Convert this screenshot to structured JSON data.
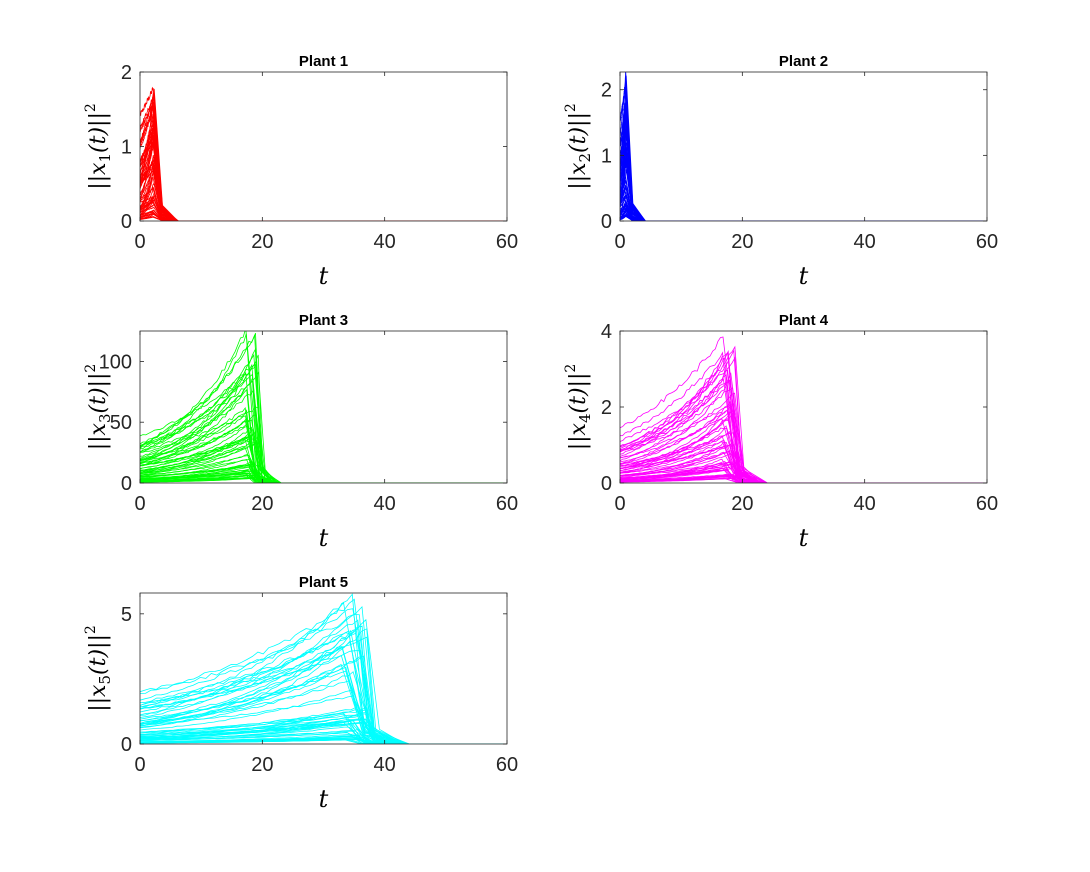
{
  "chart_data": [
    {
      "type": "line",
      "title": "Plant 1",
      "color": "#ff0000",
      "xlabel": "t",
      "ylabel": {
        "pre": "||",
        "var": "x",
        "sub": "1",
        "arg": "(t)",
        "post": "||",
        "sup": "2"
      },
      "xlim": [
        0,
        60
      ],
      "ylim": [
        0,
        2
      ],
      "xticks": [
        0,
        20,
        40,
        60
      ],
      "yticks": [
        0,
        1,
        2
      ],
      "peak_time": 2.3,
      "max_peak": 1.78,
      "decay_end": 6
    },
    {
      "type": "line",
      "title": "Plant 2",
      "color": "#0000ff",
      "xlabel": "t",
      "ylabel": {
        "pre": "||",
        "var": "x",
        "sub": "2",
        "arg": "(t)",
        "post": "||",
        "sup": "2"
      },
      "xlim": [
        0,
        60
      ],
      "ylim": [
        0,
        2.27
      ],
      "xticks": [
        0,
        20,
        40,
        60
      ],
      "yticks": [
        0,
        1,
        2
      ],
      "peak_time": 1.0,
      "max_peak": 2.27,
      "decay_end": 4
    },
    {
      "type": "line",
      "title": "Plant 3",
      "color": "#00ff00",
      "xlabel": "t",
      "ylabel": {
        "pre": "||",
        "var": "x",
        "sub": "3",
        "arg": "(t)",
        "post": "||",
        "sup": "2"
      },
      "xlim": [
        0,
        60
      ],
      "ylim": [
        0,
        125
      ],
      "xticks": [
        0,
        20,
        40,
        60
      ],
      "yticks": [
        0,
        50,
        100
      ],
      "peak_time": 19,
      "max_peak": 125,
      "decay_end": 22
    },
    {
      "type": "line",
      "title": "Plant 4",
      "color": "#ff00ff",
      "xlabel": "t",
      "ylabel": {
        "pre": "||",
        "var": "x",
        "sub": "4",
        "arg": "(t)",
        "post": "||",
        "sup": "2"
      },
      "xlim": [
        0,
        60
      ],
      "ylim": [
        0,
        4
      ],
      "xticks": [
        0,
        20,
        40,
        60
      ],
      "yticks": [
        0,
        2,
        4
      ],
      "peak_time": 18.5,
      "max_peak": 3.85,
      "decay_end": 23
    },
    {
      "type": "line",
      "title": "Plant 5",
      "color": "#00ffff",
      "xlabel": "t",
      "ylabel": {
        "pre": "||",
        "var": "x",
        "sub": "5",
        "arg": "(t)",
        "post": "||",
        "sup": "2"
      },
      "xlim": [
        0,
        60
      ],
      "ylim": [
        0,
        5.8
      ],
      "xticks": [
        0,
        20,
        40,
        60
      ],
      "yticks": [
        0,
        5
      ],
      "peak_time": 36.5,
      "max_peak": 5.7,
      "decay_end": 42
    }
  ]
}
